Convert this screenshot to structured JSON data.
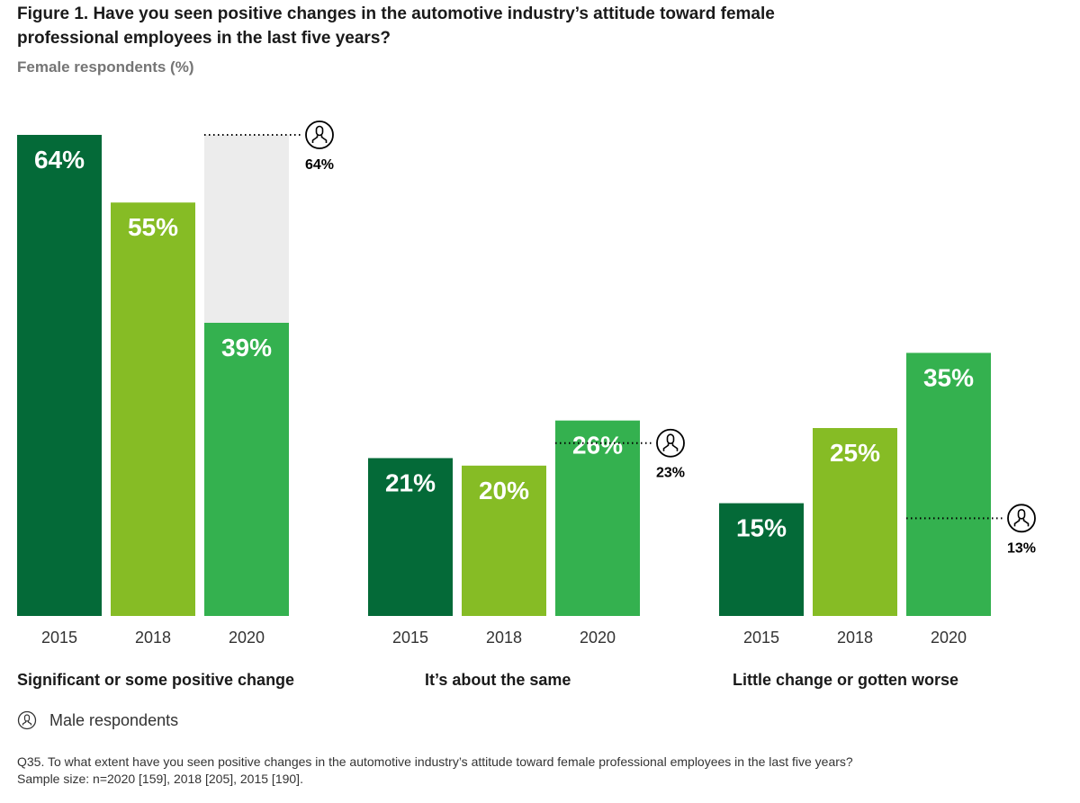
{
  "title": "Figure 1. Have you seen positive changes in the automotive industry’s attitude toward female professional employees in the last five years?",
  "subtitle": "Female respondents (%)",
  "legend": {
    "icon": "male-person-icon",
    "label": "Male respondents"
  },
  "note": {
    "question": "Q35. To what extent have you seen positive changes in the automotive industry’s attitude toward female professional employees in the last five years?",
    "sample": "Sample size: n=2020 [159], 2018 [205], 2015 [190]."
  },
  "colors": {
    "2015": "#046A38",
    "2018": "#86BC25",
    "2020": "#34B14F",
    "ghost": "#ECECEC"
  },
  "chart_data": {
    "type": "bar",
    "title": "Figure 1. Have you seen positive changes in the automotive industry’s attitude toward female professional employees in the last five years?",
    "subtitle": "Female respondents (%)",
    "xlabel": "",
    "ylabel": "Female respondents (%)",
    "ylim": [
      0,
      64
    ],
    "grid": false,
    "categories": [
      "Significant or some positive change",
      "It’s about the same",
      "Little change or gotten worse"
    ],
    "years": [
      "2015",
      "2018",
      "2020"
    ],
    "series": [
      {
        "name": "2015",
        "values": [
          64,
          21,
          15
        ]
      },
      {
        "name": "2018",
        "values": [
          55,
          20,
          25
        ]
      },
      {
        "name": "2020",
        "values": [
          39,
          26,
          35
        ]
      }
    ],
    "male_respondents_2020": {
      "name": "Male respondents",
      "values": [
        64,
        23,
        13
      ]
    },
    "value_suffix": "%"
  }
}
